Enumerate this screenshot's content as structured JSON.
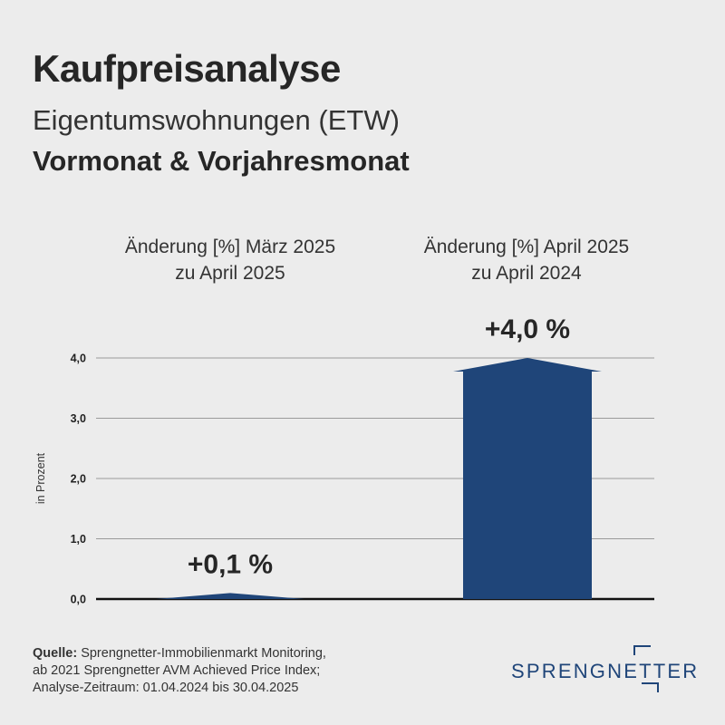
{
  "header": {
    "title": "Kaufpreisanalyse",
    "subtitle": "Eigentumswohnungen (ETW)",
    "subtitle2": "Vormonat & Vorjahresmonat"
  },
  "chart_data": {
    "type": "bar",
    "categories": [
      [
        "Änderung [%] März 2025",
        "zu April 2025"
      ],
      [
        "Änderung [%] April 2025",
        "zu April 2024"
      ]
    ],
    "values": [
      0.1,
      4.0
    ],
    "value_labels": [
      "+0,1 %",
      "+4,0 %"
    ],
    "ylabel": "in Prozent",
    "ylim": [
      0,
      4
    ],
    "yticks": [
      0,
      1,
      2,
      3,
      4
    ],
    "ytick_labels": [
      "0,0",
      "1,0",
      "2,0",
      "3,0",
      "4,0"
    ],
    "grid": true,
    "bar_color": "#1f4579"
  },
  "footer": {
    "source_label": "Quelle:",
    "source_text": "Sprengnetter-Immobilienmarkt Monitoring,",
    "line2": "ab 2021 Sprengnetter AVM Achieved Price Index;",
    "line3": "Analyse-Zeitraum: 01.04.2024 bis 30.04.2025"
  },
  "logo": {
    "text": "SPRENGNETTER",
    "color": "#1f4579"
  }
}
